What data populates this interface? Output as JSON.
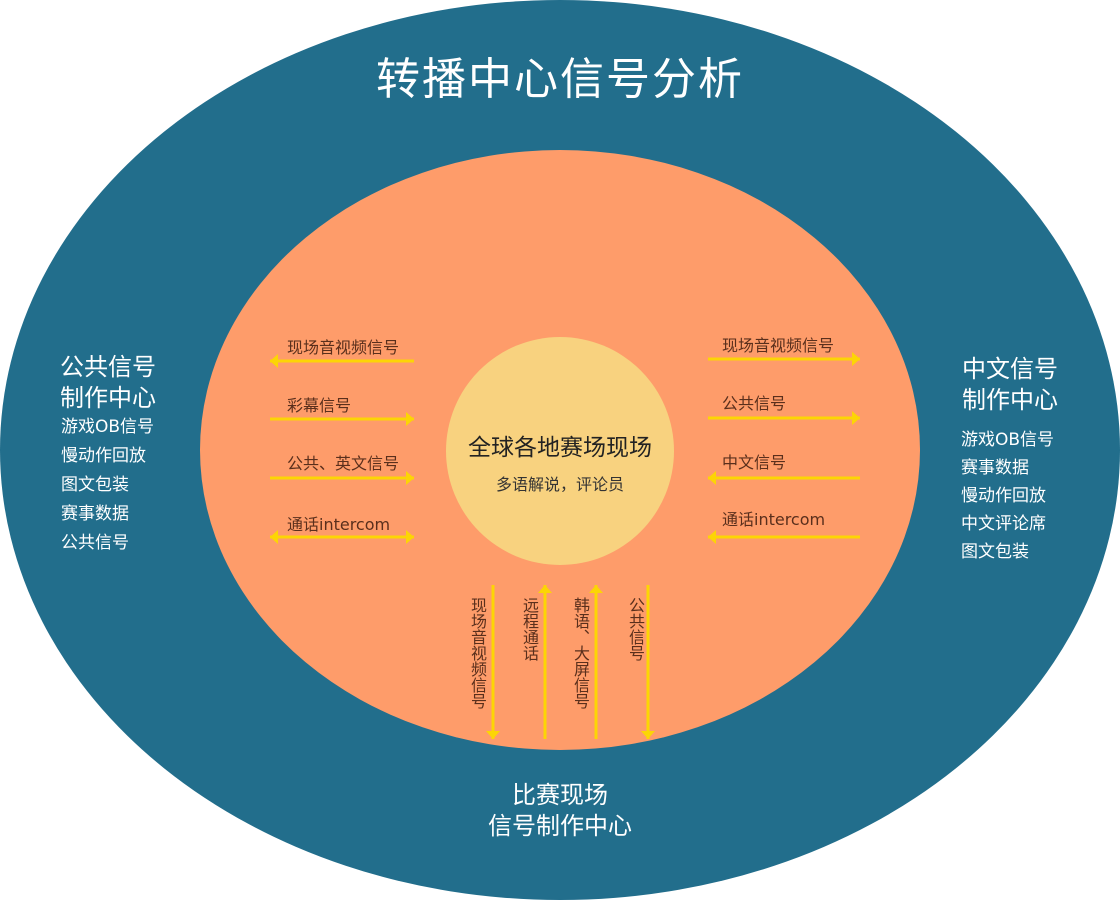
{
  "title": "转播中心信号分析",
  "colors": {
    "outer": "#226e8c",
    "middle": "#fe9c6a",
    "inner": "#f8d27f",
    "arrow": "#fcd505"
  },
  "center": {
    "title": "全球各地赛场现场",
    "subtitle": "多语解说，评论员"
  },
  "left_block": {
    "title_line1": "公共信号",
    "title_line2": "制作中心",
    "items": [
      "游戏OB信号",
      "慢动作回放",
      "图文包装",
      "赛事数据",
      "公共信号"
    ]
  },
  "right_block": {
    "title_line1": "中文信号",
    "title_line2": "制作中心",
    "items": [
      "游戏OB信号",
      "赛事数据",
      "慢动作回放",
      "中文评论席",
      "图文包装"
    ]
  },
  "bottom_block": {
    "title_line1": "比赛现场",
    "title_line2": "信号制作中心"
  },
  "left_arrows": [
    {
      "label": "现场音视频信号",
      "direction": "left"
    },
    {
      "label": "彩幕信号",
      "direction": "right"
    },
    {
      "label": "公共、英文信号",
      "direction": "right"
    },
    {
      "label": "通话intercom",
      "direction": "both"
    }
  ],
  "right_arrows": [
    {
      "label": "现场音视频信号",
      "direction": "right"
    },
    {
      "label": "公共信号",
      "direction": "right"
    },
    {
      "label": "中文信号",
      "direction": "left"
    },
    {
      "label": "通话intercom",
      "direction": "left"
    }
  ],
  "bottom_arrows": [
    {
      "label": "现场音视频信号",
      "direction": "down"
    },
    {
      "label": "远程通话",
      "direction": "up"
    },
    {
      "label": "韩语、大屏信号",
      "direction": "up"
    },
    {
      "label": "公共信号",
      "direction": "down"
    }
  ]
}
